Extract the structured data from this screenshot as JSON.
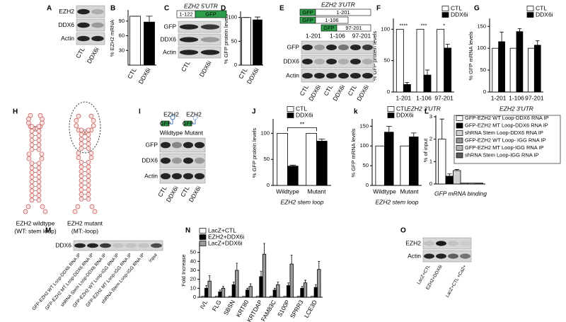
{
  "panel_labels": [
    "A",
    "B",
    "C",
    "D",
    "E",
    "F",
    "G",
    "H",
    "I",
    "J",
    "k",
    "L",
    "M",
    "N",
    "O"
  ],
  "chart_data": [
    {
      "type": "bar",
      "ylabel": "% EZH2 mRNA",
      "categories": [
        "CTL",
        "DDX6i"
      ],
      "values": [
        100,
        88
      ],
      "errors": [
        0,
        12
      ],
      "colors": [
        "#ffffff",
        "#000000"
      ],
      "ylim": [
        0,
        110
      ],
      "yticks": [
        30,
        60,
        90
      ]
    },
    {
      "type": "bar",
      "ylabel": "% GFP protein levels",
      "categories": [
        "CTL",
        "DDX6i"
      ],
      "values": [
        100,
        95
      ],
      "errors": [
        0,
        6
      ],
      "colors": [
        "#ffffff",
        "#000000"
      ],
      "ylim": [
        0,
        110
      ],
      "yticks": [
        0,
        50,
        100
      ]
    },
    {
      "type": "bar",
      "ylabel": "% GFP protein levels",
      "xlabel": "EZH2 3'UTR",
      "categories": [
        "1-201",
        "1-106",
        "97-201"
      ],
      "series": [
        {
          "name": "CTL",
          "color": "#ffffff",
          "values": [
            100,
            100,
            100
          ]
        },
        {
          "name": "DDX6i",
          "color": "#000000",
          "values": [
            12,
            27,
            70
          ],
          "errors": [
            3,
            8,
            6
          ]
        }
      ],
      "significance": [
        "****",
        "***",
        "*"
      ],
      "ylim": [
        0,
        115
      ],
      "yticks": [
        0,
        50,
        100
      ],
      "legend": "top-right"
    },
    {
      "type": "bar",
      "ylabel": "% GFP mRNA levels",
      "xlabel": "EZH2 3'UTR",
      "categories": [
        "1-201",
        "1-106",
        "97-201"
      ],
      "series": [
        {
          "name": "CTL",
          "color": "#ffffff",
          "values": [
            100,
            100,
            100
          ]
        },
        {
          "name": "DDX6i",
          "color": "#000000",
          "values": [
            115,
            138,
            107
          ],
          "errors": [
            22,
            7,
            10
          ]
        }
      ],
      "ylim": [
        0,
        165
      ],
      "yticks": [
        0,
        50,
        100,
        150
      ],
      "legend": "top-right"
    },
    {
      "type": "bar",
      "ylabel": "% GFP protein levels",
      "xlabel": "EZH2 stem loop",
      "categories": [
        "Wildtype",
        "Mutant"
      ],
      "series": [
        {
          "name": "CTL",
          "color": "#ffffff",
          "values": [
            100,
            100
          ]
        },
        {
          "name": "DDX6i",
          "color": "#000000",
          "values": [
            37,
            85
          ],
          "errors": [
            2,
            4
          ]
        }
      ],
      "comparison": "**",
      "ylim": [
        0,
        125
      ],
      "yticks": [
        0,
        50,
        100
      ],
      "legend": "top-right"
    },
    {
      "type": "bar",
      "ylabel": "% GFP mRNA levels",
      "xlabel": "EZH2 stem loop",
      "categories": [
        "Wildtype",
        "Mutant"
      ],
      "series": [
        {
          "name": "CTL",
          "color": "#ffffff",
          "values": [
            100,
            100
          ]
        },
        {
          "name": "DDX6i",
          "color": "#000000",
          "values": [
            135,
            123
          ],
          "errors": [
            15,
            10
          ]
        }
      ],
      "ylim": [
        0,
        165
      ],
      "yticks": [
        0,
        50,
        100,
        150
      ],
      "legend": "top-right"
    },
    {
      "type": "bar",
      "ylabel": "% of input",
      "xlabel": "GFP mRNA binding",
      "series": [
        {
          "name": "GFP-EZH2 WT Loop-DDX6 RNA IP",
          "color": "#ffffff",
          "values": [
            2.0
          ],
          "errors": [
            0.9
          ]
        },
        {
          "name": "GFP-EZH2 MT Loop-DDX6 RNA IP",
          "color": "#000000",
          "values": [
            0.35
          ],
          "errors": [
            0.1
          ]
        },
        {
          "name": "shRNA Stem Loop-DDX6 RNA IP",
          "color": "#d0d0d0",
          "values": [
            0.6
          ],
          "errors": [
            0.05
          ]
        },
        {
          "name": "GFP-EZH2 WT Loop- IGG RNA IP",
          "color": "#909090",
          "values": [
            0.04
          ]
        },
        {
          "name": "GFP-EZH2 MT Loop-IGG RNA IP",
          "color": "#b5b5b5",
          "values": [
            0.04
          ]
        },
        {
          "name": "shRNA Stem Loop-IGG RNA IP",
          "color": "#5a5a5a",
          "values": [
            0.04
          ]
        }
      ],
      "ylim": [
        0,
        3
      ],
      "yticks": [
        0,
        1,
        2,
        3
      ],
      "legend": "right"
    },
    {
      "type": "bar",
      "ylabel": "Fold Increase",
      "categories": [
        "IVL",
        "FLG",
        "SBSN",
        "KRT80",
        "KRTDAP",
        "FAM83C",
        "S100P",
        "SPRR3",
        "LCE3D"
      ],
      "series": [
        {
          "name": "LacZ+CTL",
          "color": "#ffffff",
          "values": [
            1,
            1,
            1,
            1,
            1,
            1,
            1,
            1,
            1
          ]
        },
        {
          "name": "EZH2+DDX6i",
          "color": "#000000",
          "values": [
            10,
            6,
            14,
            8,
            23,
            8,
            13,
            10,
            11
          ],
          "errors": [
            3,
            2,
            3,
            2,
            6,
            2,
            3,
            2,
            3
          ]
        },
        {
          "name": "LacZ+DDX6i",
          "color": "#9a9a9a",
          "values": [
            18,
            10,
            30,
            12,
            48,
            14,
            37,
            16,
            31
          ],
          "errors": [
            6,
            2,
            8,
            3,
            12,
            3,
            10,
            3,
            9
          ]
        }
      ],
      "ylim": [
        0,
        60
      ],
      "yticks": [
        0,
        10,
        20,
        30,
        40,
        50
      ],
      "legend": "top-left"
    }
  ],
  "blots": {
    "A": {
      "rows": [
        "EZH2",
        "DDX6",
        "Actin"
      ],
      "lanes": [
        "CTL",
        "DDX6i"
      ]
    },
    "C": {
      "title": "EZH2 5'UTR",
      "construct": [
        "1-122",
        "GFP"
      ],
      "rows": [
        "GFP",
        "DDX6",
        "Actin"
      ],
      "lanes": [
        "CTL",
        "DDX6i"
      ]
    },
    "E": {
      "title": "EZH2 3'UTR",
      "constructs": [
        [
          "GFP",
          "1-201"
        ],
        [
          "GFP",
          "1-106"
        ],
        [
          "GFP",
          "97-201"
        ]
      ],
      "groups": [
        "1-201",
        "1-106",
        "97-201"
      ],
      "rows": [
        "GFP",
        "DDX6",
        "Actin"
      ],
      "lanes": [
        "CTL",
        "DDX6i",
        "CTL",
        "DDX6i",
        "CTL",
        "DDX6i"
      ]
    },
    "I": {
      "headers": [
        "EZH2",
        "EZH2"
      ],
      "tags": [
        "GFP",
        "GFP"
      ],
      "constructs": [
        "Wildtype",
        "Mutant"
      ],
      "rows": [
        "GFP",
        "DDX6",
        "Actin"
      ],
      "lanes": [
        "CTL",
        "DDX6i",
        "CTL",
        "DDX6i"
      ]
    },
    "M": {
      "rows": [
        "DDX6"
      ],
      "lanes": [
        "GFP-EZH2 WT Loop-DDX6 RNA IP",
        "GFP-EZH2 MT Loop-DDX6 RNA IP",
        "shRNA Stem Loop-DDX6 RNA IP",
        "GFP-EZH2 WT Loop-IGG RNA IP",
        "GFP-EZH2 MT Loop-IGG RNA IP",
        "shRNA Stem Loop-IGG RNA IP",
        "Input"
      ]
    },
    "O": {
      "rows": [
        "EZH2",
        "Actin"
      ],
      "lanes": [
        "LacZ+CTL",
        "EZH2+DDX6i",
        "LacZ+CTL +Ca2+"
      ]
    }
  },
  "diagram": {
    "labels": [
      [
        "EZH2 wildtype",
        "(WT: stem loop)"
      ],
      [
        "EZH2 mutant",
        "(MT:-loop)"
      ]
    ]
  }
}
